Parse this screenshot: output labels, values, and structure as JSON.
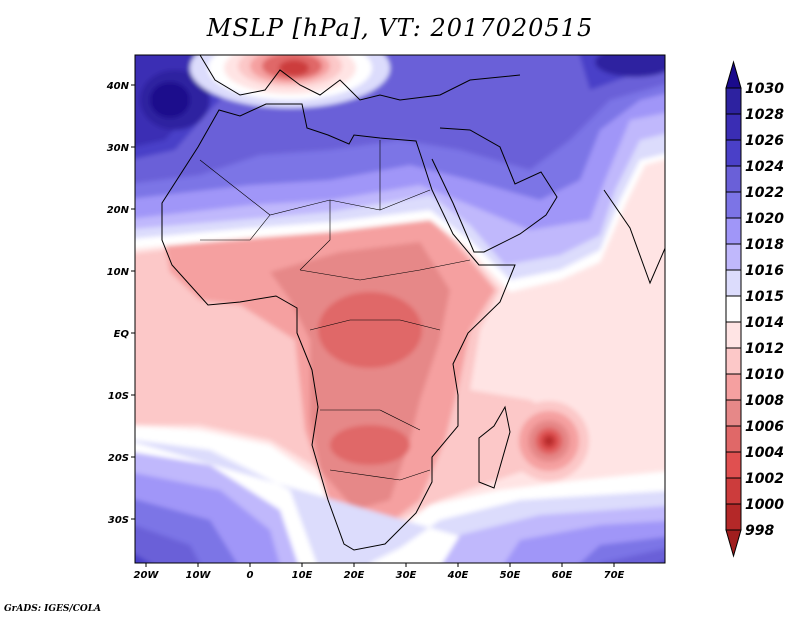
{
  "title": "MSLP [hPa], VT: 2017020515",
  "credit": "GrADS: IGES/COLA",
  "map": {
    "variable": "MSLP",
    "units": "hPa",
    "valid_time": "2017020515",
    "lon_range": [
      -22,
      80
    ],
    "lat_range": [
      -37,
      45
    ],
    "lon_ticks": [
      {
        "value": -20,
        "label": "20W"
      },
      {
        "value": -10,
        "label": "10W"
      },
      {
        "value": 0,
        "label": "0"
      },
      {
        "value": 10,
        "label": "10E"
      },
      {
        "value": 20,
        "label": "20E"
      },
      {
        "value": 30,
        "label": "30E"
      },
      {
        "value": 40,
        "label": "40E"
      },
      {
        "value": 50,
        "label": "50E"
      },
      {
        "value": 60,
        "label": "60E"
      },
      {
        "value": 70,
        "label": "70E"
      }
    ],
    "lat_ticks": [
      {
        "value": 40,
        "label": "40N"
      },
      {
        "value": 30,
        "label": "30N"
      },
      {
        "value": 20,
        "label": "20N"
      },
      {
        "value": 10,
        "label": "10N"
      },
      {
        "value": 0,
        "label": "EQ"
      },
      {
        "value": -10,
        "label": "10S"
      },
      {
        "value": -20,
        "label": "20S"
      },
      {
        "value": -30,
        "label": "30S"
      }
    ]
  },
  "colorbar": {
    "labels": [
      "1030",
      "1028",
      "1026",
      "1024",
      "1022",
      "1020",
      "1018",
      "1016",
      "1015",
      "1014",
      "1012",
      "1010",
      "1008",
      "1006",
      "1004",
      "1002",
      "1000",
      "998"
    ],
    "colors": [
      "#1a0a8c",
      "#2d22a0",
      "#3a2db4",
      "#4a40c8",
      "#6a60d8",
      "#7c74e6",
      "#a096f8",
      "#c0b8fc",
      "#dcdcfc",
      "#ffffff",
      "#ffe4e4",
      "#fcc8c8",
      "#f5a0a0",
      "#e68888",
      "#e06868",
      "#e05050",
      "#cc3c3c",
      "#b42828",
      "#a01e1e"
    ]
  }
}
